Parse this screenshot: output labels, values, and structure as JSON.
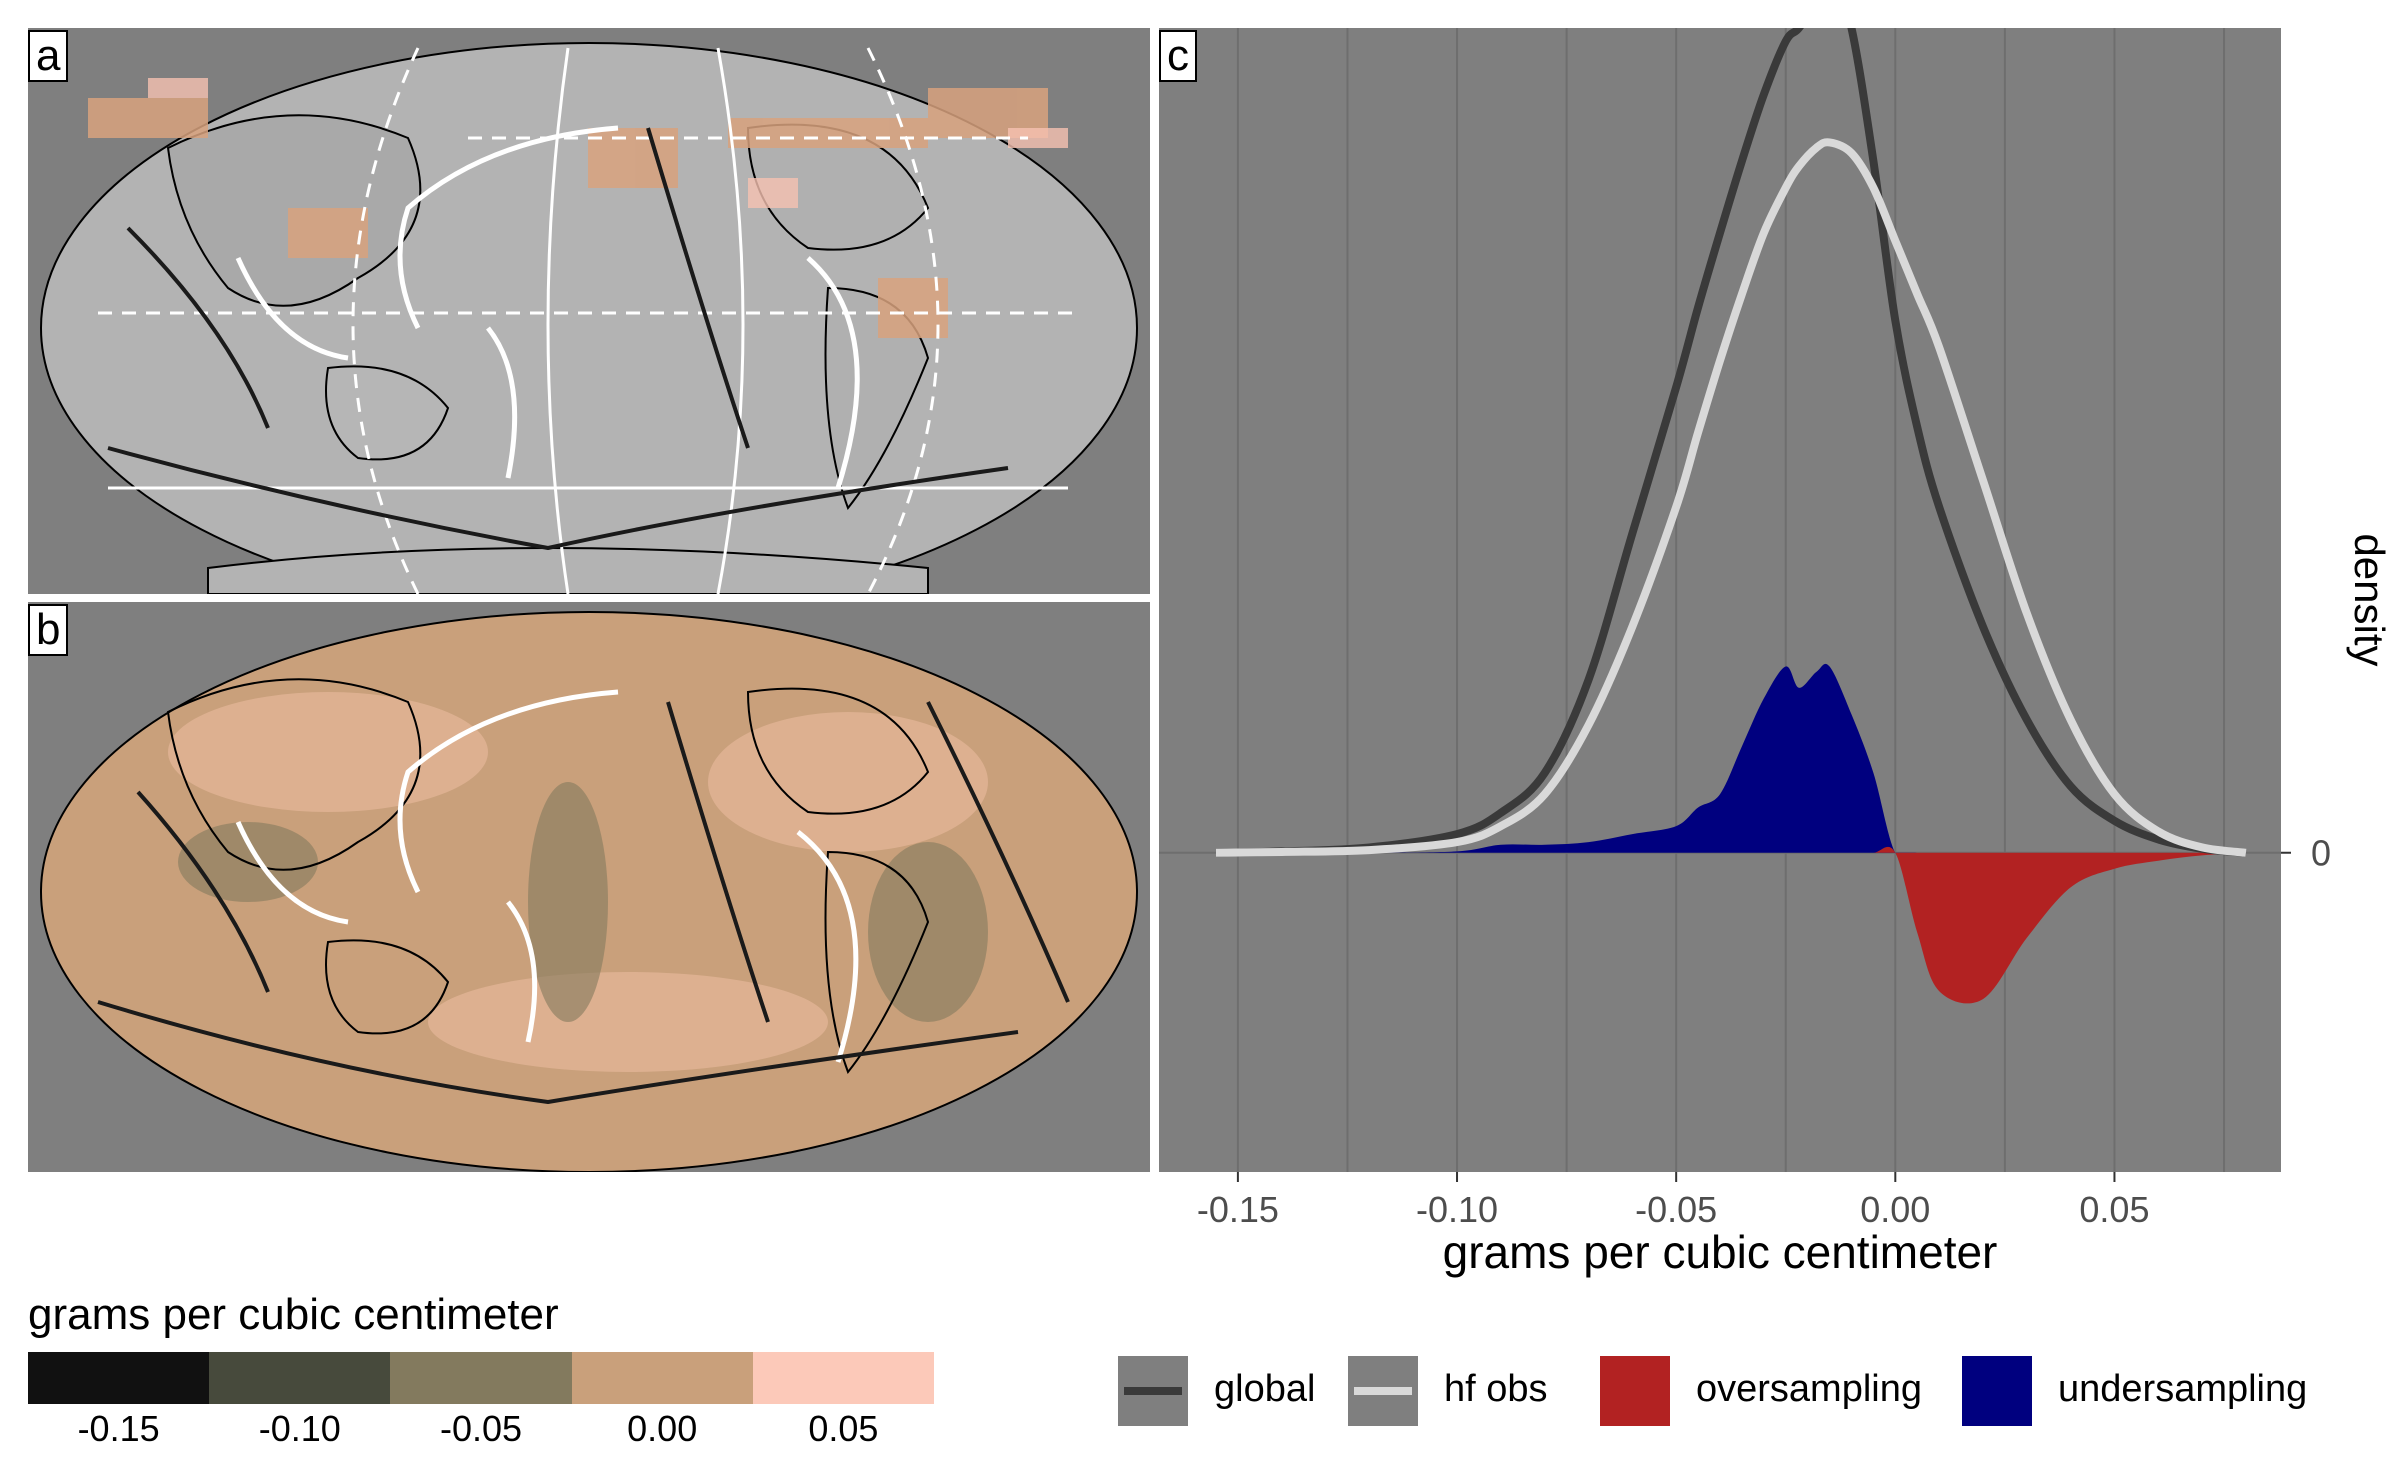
{
  "panels": {
    "a_label": "a",
    "b_label": "b",
    "c_label": "c"
  },
  "colorbar": {
    "title": "grams per cubic centimeter",
    "ticks": [
      "-0.15",
      "-0.10",
      "-0.05",
      "0.00",
      "0.05"
    ],
    "colors": [
      "#111111",
      "#474a3c",
      "#837a5e",
      "#c9a07b",
      "#fcc9b9"
    ]
  },
  "colors": {
    "panel_bg": "#7f7f7f",
    "global": "#3a3a3a",
    "hf_obs": "#d9d9d9",
    "oversampling": "#b22222",
    "undersampling": "#00007f"
  },
  "chart_data": {
    "type": "area",
    "xlabel": "grams per cubic centimeter",
    "ylabel": "density",
    "xlim": [
      -0.168,
      0.088
    ],
    "ylim": [
      -12,
      31
    ],
    "x_ticks": [
      "-0.15",
      "-0.10",
      "-0.05",
      "0.00",
      "0.05"
    ],
    "x_tick_values": [
      -0.15,
      -0.1,
      -0.05,
      0.0,
      0.05
    ],
    "y_ticks": [
      "0"
    ],
    "y_tick_values": [
      0
    ],
    "grid": true,
    "legend_position": "bottom",
    "legend": [
      "global",
      "hf obs",
      "oversampling",
      "undersampling"
    ],
    "x": [
      -0.155,
      -0.14,
      -0.12,
      -0.1,
      -0.09,
      -0.08,
      -0.07,
      -0.06,
      -0.05,
      -0.045,
      -0.04,
      -0.035,
      -0.03,
      -0.025,
      -0.022,
      -0.018,
      -0.015,
      -0.01,
      -0.005,
      0.0,
      0.005,
      0.01,
      0.02,
      0.03,
      0.04,
      0.05,
      0.06,
      0.07,
      0.08
    ],
    "series": [
      {
        "name": "global",
        "values": [
          0.0,
          0.05,
          0.2,
          0.7,
          1.5,
          3.0,
          6.5,
          12.0,
          17.5,
          20.5,
          23.3,
          26.0,
          28.5,
          30.5,
          31.0,
          32.0,
          33.5,
          31.0,
          26.0,
          20.0,
          16.0,
          13.0,
          8.5,
          5.0,
          2.5,
          1.2,
          0.5,
          0.15,
          0.0
        ]
      },
      {
        "name": "hf obs",
        "values": [
          0.0,
          0.03,
          0.1,
          0.4,
          1.0,
          2.2,
          4.8,
          8.5,
          13.0,
          15.8,
          18.5,
          21.0,
          23.3,
          25.0,
          25.8,
          26.5,
          26.7,
          26.3,
          25.0,
          23.0,
          21.0,
          19.0,
          14.0,
          9.0,
          5.0,
          2.2,
          0.8,
          0.2,
          0.0
        ]
      },
      {
        "name": "undersampling",
        "values": [
          0.0,
          0.0,
          0.0,
          0.05,
          0.3,
          0.3,
          0.4,
          0.7,
          1.0,
          1.7,
          2.2,
          4.0,
          5.8,
          7.0,
          6.2,
          6.8,
          7.0,
          5.2,
          3.0,
          0.0,
          0.0,
          0.0,
          0.0,
          0.0,
          0.0,
          0.0,
          0.0,
          0.0,
          0.0
        ]
      },
      {
        "name": "oversampling",
        "values": [
          0.0,
          0.0,
          0.0,
          0.0,
          0.0,
          0.0,
          0.0,
          0.0,
          0.0,
          0.0,
          0.0,
          0.0,
          0.0,
          0.0,
          0.0,
          0.0,
          0.0,
          0.0,
          0.0,
          0.0,
          -3.0,
          -5.2,
          -5.5,
          -3.2,
          -1.3,
          -0.6,
          -0.3,
          -0.1,
          0.0
        ]
      }
    ]
  }
}
